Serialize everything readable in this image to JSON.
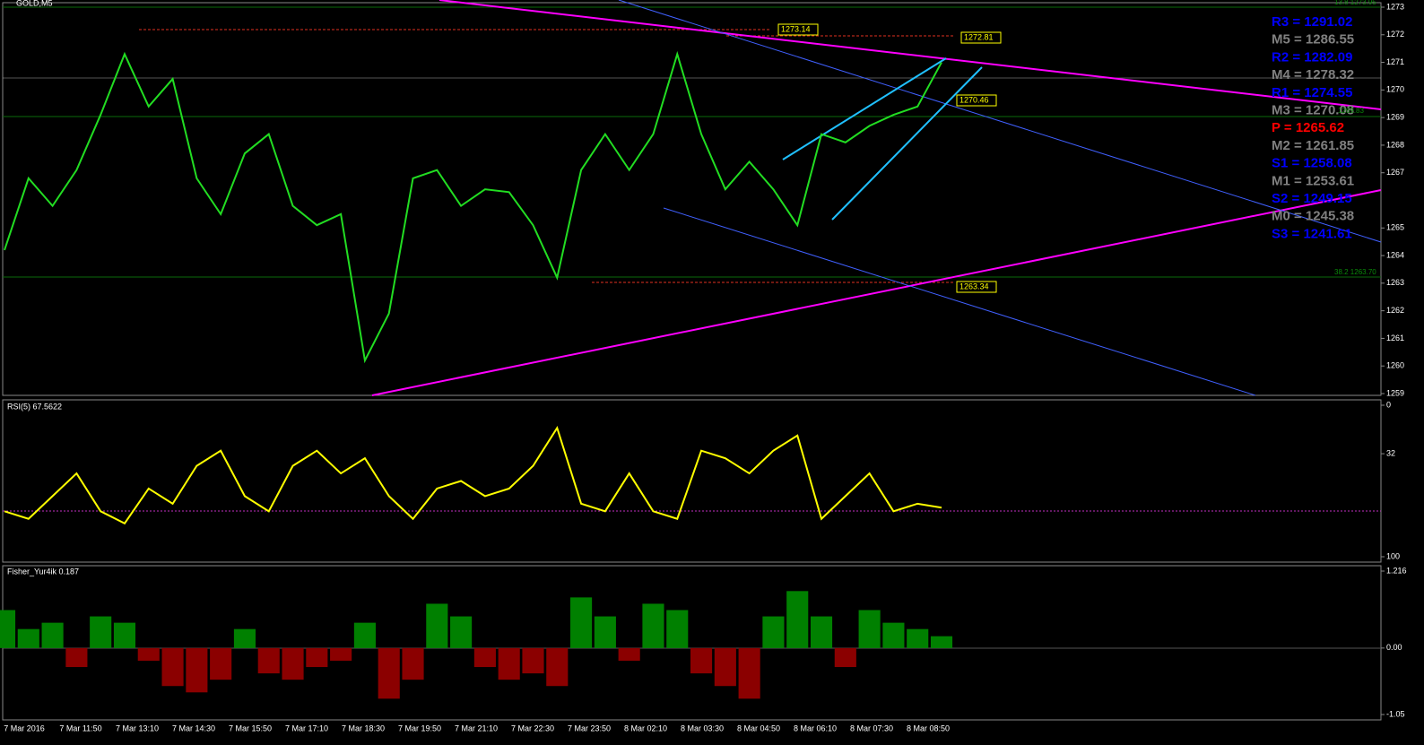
{
  "symbol": "GOLD,M5",
  "time_labels": [
    "7 Mar 2016",
    "7 Mar 11:50",
    "7 Mar 13:10",
    "7 Mar 14:30",
    "7 Mar 15:50",
    "7 Mar 17:10",
    "7 Mar 18:30",
    "7 Mar 19:50",
    "7 Mar 21:10",
    "7 Mar 22:30",
    "7 Mar 23:50",
    "8 Mar 02:10",
    "8 Mar 03:30",
    "8 Mar 04:50",
    "8 Mar 06:10",
    "8 Mar 07:30",
    "8 Mar 08:50"
  ],
  "pivots": [
    {
      "label": "R3 = 1291.02",
      "color": "#0000ff"
    },
    {
      "label": "M5 = 1286.55",
      "color": "#808080"
    },
    {
      "label": "R2 = 1282.09",
      "color": "#0000ff"
    },
    {
      "label": "M4 = 1278.32",
      "color": "#808080"
    },
    {
      "label": "R1 = 1274.55",
      "color": "#0000ff"
    },
    {
      "label": "M3 = 1270.08",
      "color": "#808080"
    },
    {
      "label": "P  = 1265.62",
      "color": "#ff0000"
    },
    {
      "label": "M2 = 1261.85",
      "color": "#808080"
    },
    {
      "label": "S1 = 1258.08",
      "color": "#0000ff"
    },
    {
      "label": "M1 = 1253.61",
      "color": "#808080"
    },
    {
      "label": "S2 = 1249.15",
      "color": "#0000ff"
    },
    {
      "label": "M0 = 1245.38",
      "color": "#808080"
    },
    {
      "label": "S3 = 1241.61",
      "color": "#0000ff"
    }
  ],
  "levels": [
    "1273.14",
    "1272.81",
    "1270.46",
    "1263.34"
  ],
  "fib_labels": [
    "13.8 1273.95",
    "38.2 1263.70",
    "1269.83"
  ],
  "chart_data": [
    {
      "type": "line",
      "series": [
        {
          "name": "GOLD,M5",
          "color": "#22dd22",
          "values": [
            1264.2,
            1266.8,
            1265.8,
            1267.1,
            1269.1,
            1271.3,
            1269.4,
            1270.4,
            1266.8,
            1265.5,
            1267.7,
            1268.4,
            1265.8,
            1265.1,
            1265.5,
            1260.2,
            1261.9,
            1266.8,
            1267.1,
            1265.8,
            1266.4,
            1266.3,
            1265.1,
            1263.2,
            1267.1,
            1268.4,
            1267.1,
            1268.4,
            1271.3,
            1268.4,
            1266.4,
            1267.4,
            1266.4,
            1265.1,
            1268.4,
            1268.1,
            1268.7,
            1269.1,
            1269.4,
            1271.0
          ]
        }
      ],
      "ylim": [
        1273,
        1259
      ],
      "yticks": [
        1273,
        1272,
        1271,
        1270,
        1269,
        1268,
        1267,
        1265,
        1264,
        1263,
        1262,
        1261,
        1260,
        1259
      ]
    },
    {
      "type": "line",
      "title": "RSI(5) 67.5622",
      "series": [
        {
          "name": "RSI(5)",
          "color": "#ffff00",
          "values": [
            70,
            75,
            60,
            45,
            70,
            78,
            55,
            65,
            40,
            30,
            60,
            70,
            40,
            30,
            45,
            35,
            60,
            75,
            55,
            50,
            60,
            55,
            40,
            15,
            65,
            70,
            45,
            70,
            75,
            30,
            35,
            45,
            30,
            20,
            75,
            60,
            45,
            70,
            65,
            67.6
          ]
        }
      ],
      "ylim": [
        0,
        100
      ],
      "yticks": [
        100,
        32,
        0
      ]
    },
    {
      "type": "bar",
      "title": "Fisher_Yur4ik 0.187",
      "series": [
        {
          "name": "Fisher_Yur4ik",
          "color": "#008000",
          "negative_color": "#8b0000",
          "values": [
            0.6,
            0.3,
            0.4,
            -0.3,
            0.5,
            0.4,
            -0.2,
            -0.6,
            -0.7,
            -0.5,
            0.3,
            -0.4,
            -0.5,
            -0.3,
            -0.2,
            0.4,
            -0.8,
            -0.5,
            0.7,
            0.5,
            -0.3,
            -0.5,
            -0.4,
            -0.6,
            0.8,
            0.5,
            -0.2,
            0.7,
            0.6,
            -0.4,
            -0.6,
            -0.8,
            0.5,
            0.9,
            0.5,
            -0.3,
            0.6,
            0.4,
            0.3,
            0.187
          ]
        }
      ],
      "ylim": [
        1.216,
        -1.05
      ],
      "yticks": [
        1.216,
        {
          "value": 0,
          "label": "0.00"
        },
        -1.05
      ]
    }
  ]
}
